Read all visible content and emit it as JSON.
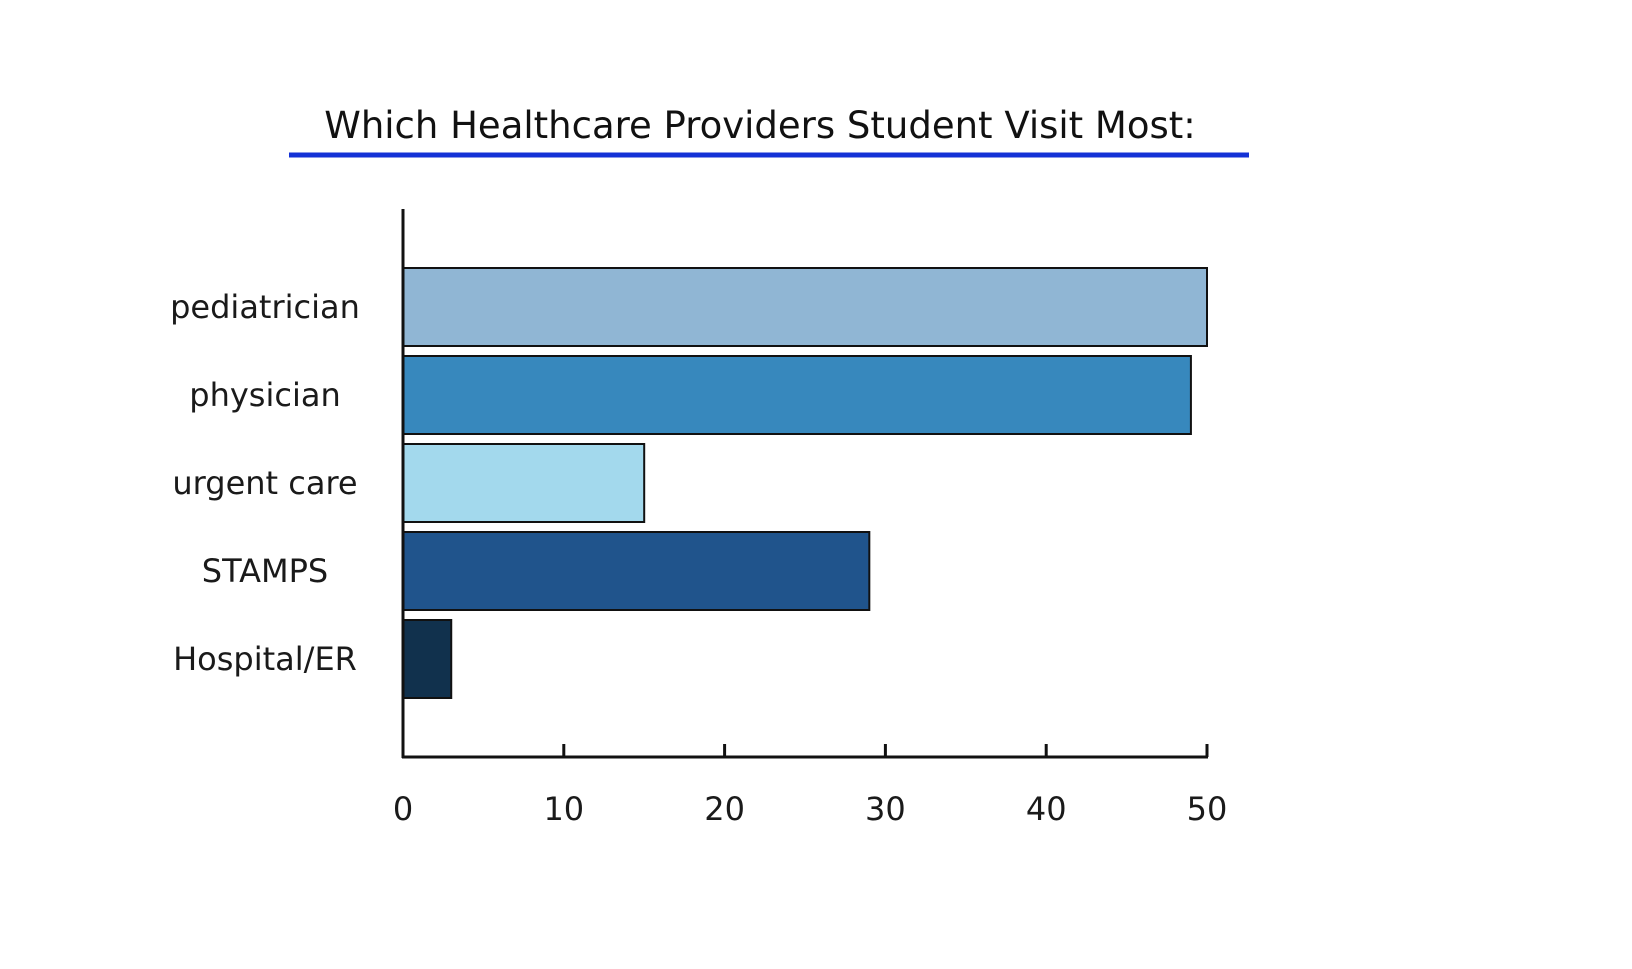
{
  "chart_data": {
    "type": "bar",
    "orientation": "horizontal",
    "title": "Which Healthcare Providers Student Visit Most:",
    "title_underline_color": "#1432d6",
    "categories": [
      "pediatrician",
      "physician",
      "urgent care",
      "STAMPS",
      "Hospital/ER"
    ],
    "values": [
      50,
      49,
      15,
      29,
      3
    ],
    "colors": [
      "#90b6d4",
      "#3788bd",
      "#a3d9ed",
      "#20548c",
      "#11314d"
    ],
    "bar_outline_color": "#111111",
    "xlim": [
      0,
      50
    ],
    "xticks": [
      0,
      10,
      20,
      30,
      40,
      50
    ],
    "grid": false,
    "xlabel": "",
    "ylabel": ""
  }
}
